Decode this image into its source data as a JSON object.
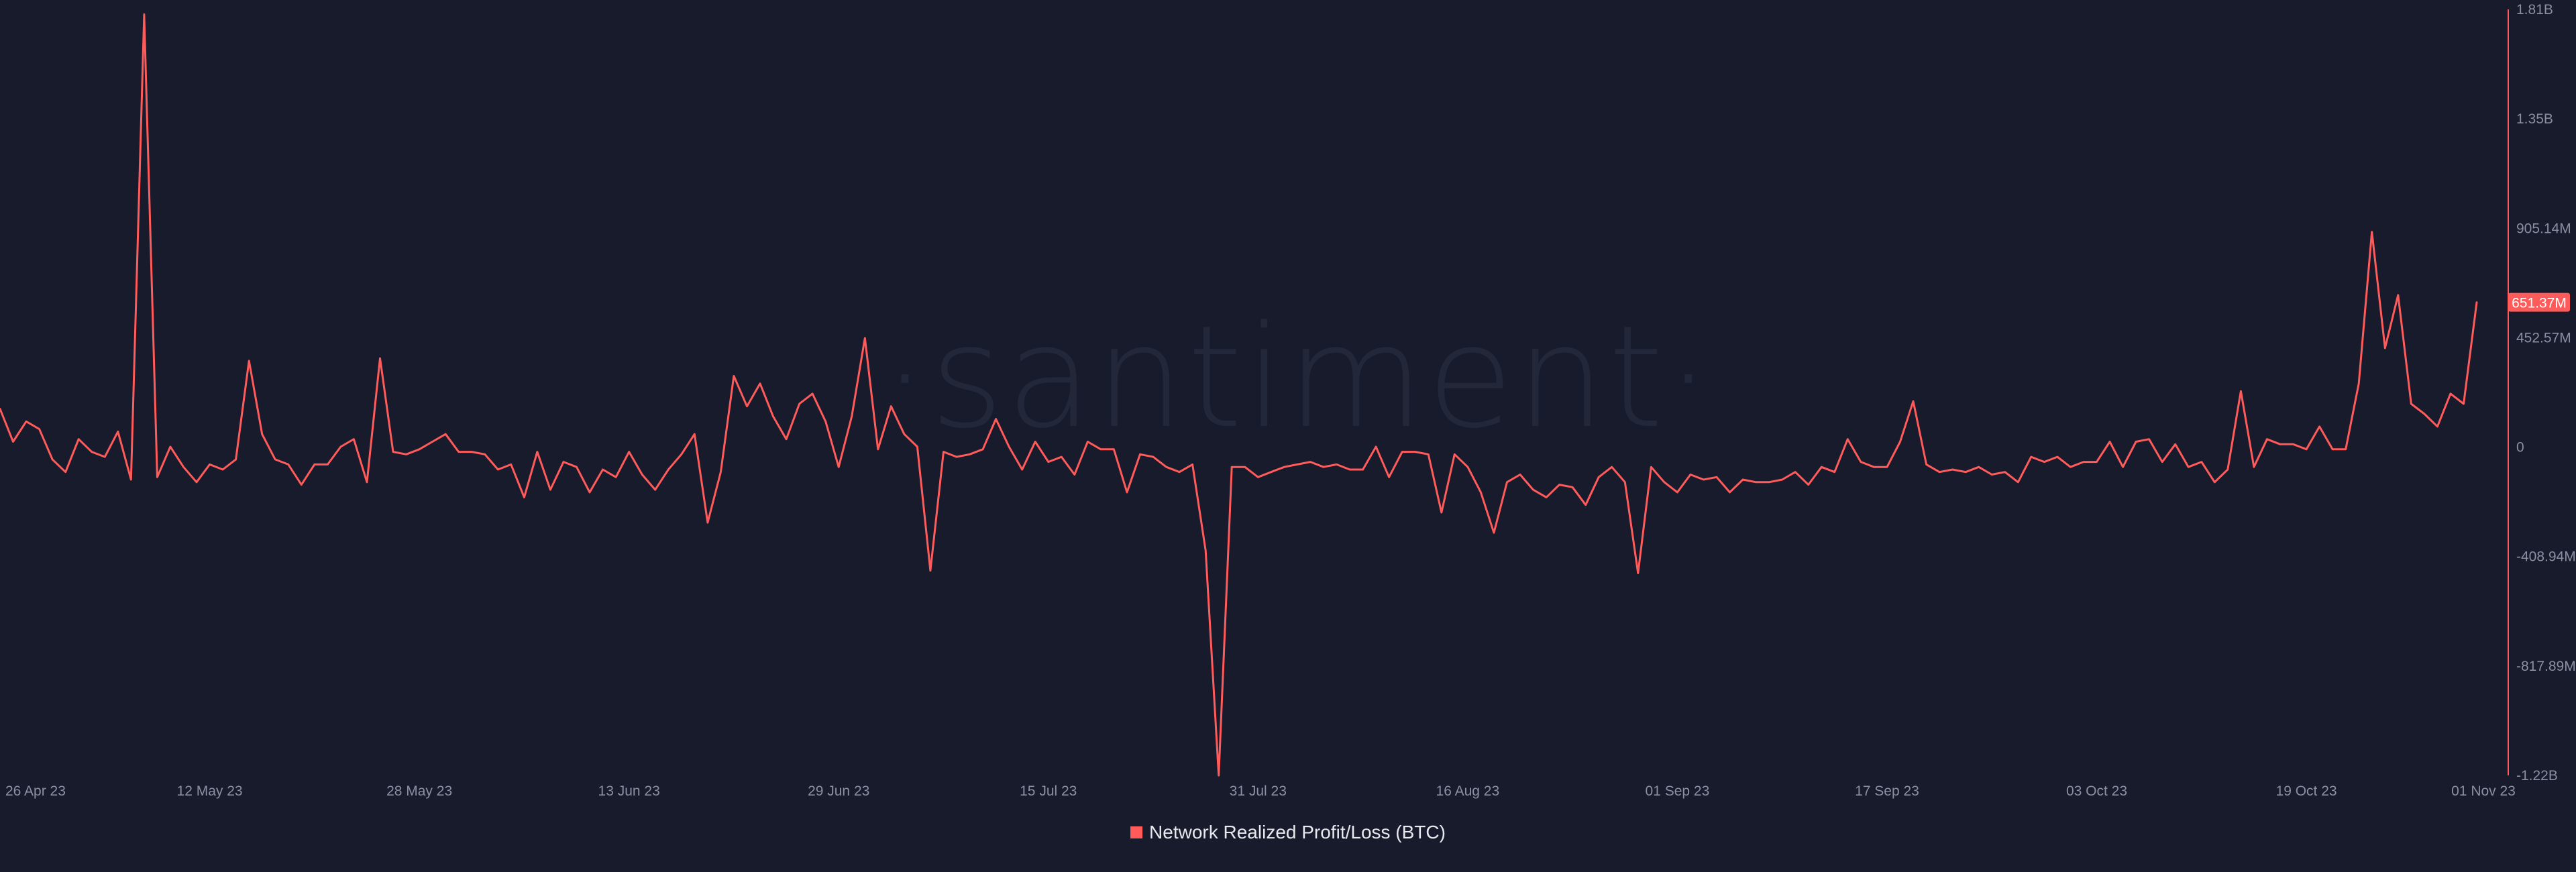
{
  "watermark": "·santiment·",
  "colors": {
    "background": "#181b2b",
    "series": "#ff5b5b",
    "axis_text": "#8a8fa3",
    "legend_text": "#e8e9ee",
    "watermark": "#23273a",
    "badge_text": "#ffffff"
  },
  "chart_data": {
    "type": "line",
    "title": "",
    "xlabel": "",
    "ylabel": "",
    "x_ticks": [
      "26 Apr 23",
      "12 May 23",
      "28 May 23",
      "13 Jun 23",
      "29 Jun 23",
      "15 Jul 23",
      "31 Jul 23",
      "16 Aug 23",
      "01 Sep 23",
      "17 Sep 23",
      "03 Oct 23",
      "19 Oct 23",
      "01 Nov 23"
    ],
    "y_ticks": [
      "1.81B",
      "1.35B",
      "905.14M",
      "452.57M",
      "0",
      "-408.94M",
      "-817.89M",
      "-1.22B"
    ],
    "ylim": [
      -1220000000,
      1810000000
    ],
    "x_range": [
      "2023-04-26",
      "2023-11-01"
    ],
    "grid": false,
    "legend_position": "bottom-center",
    "last_value_label": "651.37M",
    "series": [
      {
        "name": "Network Realized Profit/Loss (BTC)",
        "color": "#ff5b5b",
        "points": [
          [
            "2023-04-26",
            230000000
          ],
          [
            "2023-04-27",
            100000000
          ],
          [
            "2023-04-28",
            180000000
          ],
          [
            "2023-04-29",
            150000000
          ],
          [
            "2023-04-30",
            30000000
          ],
          [
            "2023-05-01",
            -20000000
          ],
          [
            "2023-05-02",
            110000000
          ],
          [
            "2023-05-03",
            60000000
          ],
          [
            "2023-05-04",
            40000000
          ],
          [
            "2023-05-05",
            140000000
          ],
          [
            "2023-05-06",
            -50000000
          ],
          [
            "2023-05-07",
            1790000000
          ],
          [
            "2023-05-08",
            -40000000
          ],
          [
            "2023-05-09",
            80000000
          ],
          [
            "2023-05-10",
            0
          ],
          [
            "2023-05-11",
            -60000000
          ],
          [
            "2023-05-12",
            10000000
          ],
          [
            "2023-05-13",
            -10000000
          ],
          [
            "2023-05-14",
            30000000
          ],
          [
            "2023-05-15",
            420000000
          ],
          [
            "2023-05-16",
            130000000
          ],
          [
            "2023-05-17",
            30000000
          ],
          [
            "2023-05-18",
            10000000
          ],
          [
            "2023-05-19",
            -70000000
          ],
          [
            "2023-05-20",
            10000000
          ],
          [
            "2023-05-21",
            10000000
          ],
          [
            "2023-05-22",
            80000000
          ],
          [
            "2023-05-23",
            110000000
          ],
          [
            "2023-05-24",
            -60000000
          ],
          [
            "2023-05-25",
            430000000
          ],
          [
            "2023-05-26",
            60000000
          ],
          [
            "2023-05-27",
            50000000
          ],
          [
            "2023-05-28",
            70000000
          ],
          [
            "2023-05-29",
            100000000
          ],
          [
            "2023-05-30",
            130000000
          ],
          [
            "2023-05-31",
            60000000
          ],
          [
            "2023-06-01",
            60000000
          ],
          [
            "2023-06-02",
            50000000
          ],
          [
            "2023-06-03",
            -10000000
          ],
          [
            "2023-06-04",
            10000000
          ],
          [
            "2023-06-05",
            -120000000
          ],
          [
            "2023-06-06",
            60000000
          ],
          [
            "2023-06-07",
            -90000000
          ],
          [
            "2023-06-08",
            20000000
          ],
          [
            "2023-06-09",
            0
          ],
          [
            "2023-06-10",
            -100000000
          ],
          [
            "2023-06-11",
            -10000000
          ],
          [
            "2023-06-12",
            -40000000
          ],
          [
            "2023-06-13",
            60000000
          ],
          [
            "2023-06-14",
            -30000000
          ],
          [
            "2023-06-15",
            -90000000
          ],
          [
            "2023-06-16",
            -10000000
          ],
          [
            "2023-06-17",
            50000000
          ],
          [
            "2023-06-18",
            130000000
          ],
          [
            "2023-06-19",
            -220000000
          ],
          [
            "2023-06-20",
            -20000000
          ],
          [
            "2023-06-21",
            360000000
          ],
          [
            "2023-06-22",
            240000000
          ],
          [
            "2023-06-23",
            330000000
          ],
          [
            "2023-06-24",
            200000000
          ],
          [
            "2023-06-25",
            110000000
          ],
          [
            "2023-06-26",
            250000000
          ],
          [
            "2023-06-27",
            290000000
          ],
          [
            "2023-06-28",
            180000000
          ],
          [
            "2023-06-29",
            0
          ],
          [
            "2023-06-30",
            200000000
          ],
          [
            "2023-07-01",
            510000000
          ],
          [
            "2023-07-02",
            70000000
          ],
          [
            "2023-07-03",
            240000000
          ],
          [
            "2023-07-04",
            130000000
          ],
          [
            "2023-07-05",
            80000000
          ],
          [
            "2023-07-06",
            -410000000
          ],
          [
            "2023-07-07",
            60000000
          ],
          [
            "2023-07-08",
            40000000
          ],
          [
            "2023-07-09",
            50000000
          ],
          [
            "2023-07-10",
            70000000
          ],
          [
            "2023-07-11",
            190000000
          ],
          [
            "2023-07-12",
            80000000
          ],
          [
            "2023-07-13",
            -10000000
          ],
          [
            "2023-07-14",
            100000000
          ],
          [
            "2023-07-15",
            20000000
          ],
          [
            "2023-07-16",
            40000000
          ],
          [
            "2023-07-17",
            -30000000
          ],
          [
            "2023-07-18",
            100000000
          ],
          [
            "2023-07-19",
            70000000
          ],
          [
            "2023-07-20",
            70000000
          ],
          [
            "2023-07-21",
            -100000000
          ],
          [
            "2023-07-22",
            50000000
          ],
          [
            "2023-07-23",
            40000000
          ],
          [
            "2023-07-24",
            0
          ],
          [
            "2023-07-25",
            -20000000
          ],
          [
            "2023-07-26",
            10000000
          ],
          [
            "2023-07-27",
            -330000000
          ],
          [
            "2023-07-28",
            -1220000000
          ],
          [
            "2023-07-29",
            0
          ],
          [
            "2023-07-30",
            0
          ],
          [
            "2023-07-31",
            -40000000
          ],
          [
            "2023-08-01",
            -20000000
          ],
          [
            "2023-08-02",
            0
          ],
          [
            "2023-08-03",
            10000000
          ],
          [
            "2023-08-04",
            20000000
          ],
          [
            "2023-08-05",
            0
          ],
          [
            "2023-08-06",
            10000000
          ],
          [
            "2023-08-07",
            -10000000
          ],
          [
            "2023-08-08",
            -10000000
          ],
          [
            "2023-08-09",
            80000000
          ],
          [
            "2023-08-10",
            -40000000
          ],
          [
            "2023-08-11",
            60000000
          ],
          [
            "2023-08-12",
            60000000
          ],
          [
            "2023-08-13",
            50000000
          ],
          [
            "2023-08-14",
            -180000000
          ],
          [
            "2023-08-15",
            50000000
          ],
          [
            "2023-08-16",
            0
          ],
          [
            "2023-08-17",
            -100000000
          ],
          [
            "2023-08-18",
            -260000000
          ],
          [
            "2023-08-19",
            -60000000
          ],
          [
            "2023-08-20",
            -30000000
          ],
          [
            "2023-08-21",
            -90000000
          ],
          [
            "2023-08-22",
            -120000000
          ],
          [
            "2023-08-23",
            -70000000
          ],
          [
            "2023-08-24",
            -80000000
          ],
          [
            "2023-08-25",
            -150000000
          ],
          [
            "2023-08-26",
            -40000000
          ],
          [
            "2023-08-27",
            0
          ],
          [
            "2023-08-28",
            -60000000
          ],
          [
            "2023-08-29",
            -420000000
          ],
          [
            "2023-08-30",
            0
          ],
          [
            "2023-08-31",
            -60000000
          ],
          [
            "2023-09-01",
            -100000000
          ],
          [
            "2023-09-02",
            -30000000
          ],
          [
            "2023-09-03",
            -50000000
          ],
          [
            "2023-09-04",
            -40000000
          ],
          [
            "2023-09-05",
            -100000000
          ],
          [
            "2023-09-06",
            -50000000
          ],
          [
            "2023-09-07",
            -60000000
          ],
          [
            "2023-09-08",
            -60000000
          ],
          [
            "2023-09-09",
            -50000000
          ],
          [
            "2023-09-10",
            -20000000
          ],
          [
            "2023-09-11",
            -70000000
          ],
          [
            "2023-09-12",
            0
          ],
          [
            "2023-09-13",
            -20000000
          ],
          [
            "2023-09-14",
            110000000
          ],
          [
            "2023-09-15",
            20000000
          ],
          [
            "2023-09-16",
            0
          ],
          [
            "2023-09-17",
            0
          ],
          [
            "2023-09-18",
            100000000
          ],
          [
            "2023-09-19",
            260000000
          ],
          [
            "2023-09-20",
            10000000
          ],
          [
            "2023-09-21",
            -20000000
          ],
          [
            "2023-09-22",
            -10000000
          ],
          [
            "2023-09-23",
            -20000000
          ],
          [
            "2023-09-24",
            0
          ],
          [
            "2023-09-25",
            -30000000
          ],
          [
            "2023-09-26",
            -20000000
          ],
          [
            "2023-09-27",
            -60000000
          ],
          [
            "2023-09-28",
            40000000
          ],
          [
            "2023-09-29",
            20000000
          ],
          [
            "2023-09-30",
            40000000
          ],
          [
            "2023-10-01",
            0
          ],
          [
            "2023-10-02",
            20000000
          ],
          [
            "2023-10-03",
            20000000
          ],
          [
            "2023-10-04",
            100000000
          ],
          [
            "2023-10-05",
            0
          ],
          [
            "2023-10-06",
            100000000
          ],
          [
            "2023-10-07",
            110000000
          ],
          [
            "2023-10-08",
            20000000
          ],
          [
            "2023-10-09",
            90000000
          ],
          [
            "2023-10-10",
            0
          ],
          [
            "2023-10-11",
            20000000
          ],
          [
            "2023-10-12",
            -60000000
          ],
          [
            "2023-10-13",
            -10000000
          ],
          [
            "2023-10-14",
            300000000
          ],
          [
            "2023-10-15",
            0
          ],
          [
            "2023-10-16",
            110000000
          ],
          [
            "2023-10-17",
            90000000
          ],
          [
            "2023-10-18",
            90000000
          ],
          [
            "2023-10-19",
            70000000
          ],
          [
            "2023-10-20",
            160000000
          ],
          [
            "2023-10-21",
            70000000
          ],
          [
            "2023-10-22",
            70000000
          ],
          [
            "2023-10-23",
            330000000
          ],
          [
            "2023-10-24",
            930000000
          ],
          [
            "2023-10-25",
            470000000
          ],
          [
            "2023-10-26",
            680000000
          ],
          [
            "2023-10-27",
            250000000
          ],
          [
            "2023-10-28",
            210000000
          ],
          [
            "2023-10-29",
            160000000
          ],
          [
            "2023-10-30",
            290000000
          ],
          [
            "2023-10-31",
            250000000
          ],
          [
            "2023-11-01",
            651370000
          ]
        ]
      }
    ]
  }
}
